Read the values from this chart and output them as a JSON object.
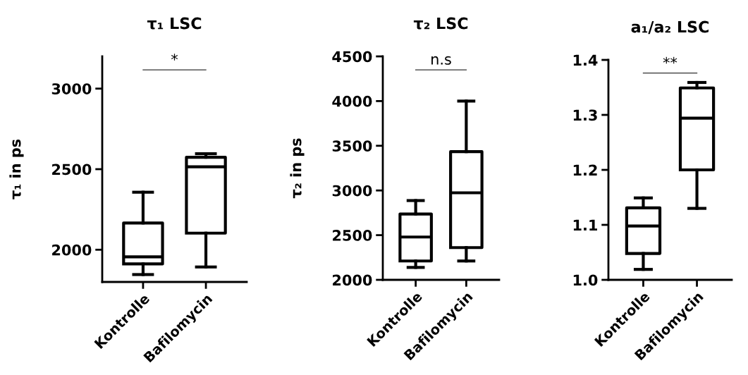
{
  "chart_data": [
    {
      "type": "box",
      "title": "τ₁ LSC",
      "ylabel": "τ₁ in ps",
      "categories": [
        "Kontrolle",
        "Bafilomycin"
      ],
      "ylim": [
        1800,
        3200
      ],
      "yticks": [
        2000,
        2500,
        3000
      ],
      "grid": false,
      "legend": false,
      "annotations": [
        "*"
      ],
      "boxes": [
        {
          "low": 1846,
          "q1": 1912,
          "median": 1956,
          "q3": 2166,
          "high": 2357
        },
        {
          "low": 1893,
          "q1": 2103,
          "median": 2515,
          "q3": 2574,
          "high": 2596
        }
      ]
    },
    {
      "type": "box",
      "title": "τ₂ LSC",
      "ylabel": "τ₂ in ps",
      "categories": [
        "Kontrolle",
        "Bafilomycin"
      ],
      "ylim": [
        2000,
        4500
      ],
      "yticks": [
        2000,
        2500,
        3000,
        3500,
        4000,
        4500
      ],
      "grid": false,
      "legend": false,
      "annotations": [
        "n.s"
      ],
      "boxes": [
        {
          "low": 2139,
          "q1": 2211,
          "median": 2479,
          "q3": 2737,
          "high": 2887
        },
        {
          "low": 2211,
          "q1": 2361,
          "median": 2974,
          "q3": 3434,
          "high": 4000
        }
      ]
    },
    {
      "type": "box",
      "title": "a₁/a₂ LSC",
      "categories": [
        "Kontrolle",
        "Bafilomycin"
      ],
      "ylim": [
        1.0,
        1.4
      ],
      "yticks": [
        {
          "value": 1.0,
          "label": "1.0"
        },
        1.1,
        1.2,
        1.3,
        1.4
      ],
      "grid": false,
      "legend": false,
      "annotations": [
        "**"
      ],
      "boxes": [
        {
          "low": 1.019,
          "q1": 1.048,
          "median": 1.098,
          "q3": 1.131,
          "high": 1.149
        },
        {
          "low": 1.13,
          "q1": 1.2,
          "median": 1.294,
          "q3": 1.349,
          "high": 1.359
        }
      ]
    }
  ]
}
